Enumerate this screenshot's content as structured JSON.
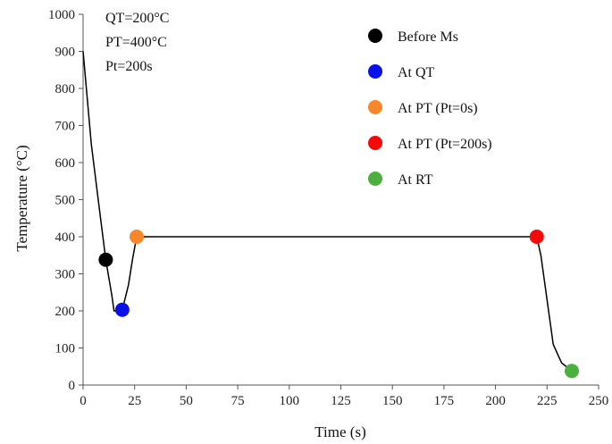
{
  "chart_data": {
    "type": "line",
    "xlabel": "Time (s)",
    "ylabel": "Temperature (°C)",
    "xlim": [
      0,
      250
    ],
    "ylim": [
      0,
      1000
    ],
    "xticks": [
      0,
      25,
      50,
      75,
      100,
      125,
      150,
      175,
      200,
      225,
      250
    ],
    "yticks": [
      0,
      100,
      200,
      300,
      400,
      500,
      600,
      700,
      800,
      900,
      1000
    ],
    "grid": false,
    "legend_position": "top-right",
    "annotations": [
      "QT=200°C",
      "PT=400°C",
      "Pt=200s"
    ],
    "series": [
      {
        "x": [
          0,
          4,
          8,
          11,
          14,
          15,
          19,
          22,
          24,
          25,
          26,
          220,
          222,
          225,
          228,
          232,
          237
        ],
        "y": [
          900,
          650,
          470,
          338,
          240,
          200,
          203,
          270,
          340,
          370,
          400,
          400,
          350,
          230,
          110,
          60,
          38
        ],
        "color": "#000000"
      }
    ],
    "markers": [
      {
        "label": "Before Ms",
        "x": 11,
        "y": 338,
        "color": "#000000"
      },
      {
        "label": "At QT",
        "x": 19,
        "y": 203,
        "color": "#0a10e8"
      },
      {
        "label": "At PT (Pt=0s)",
        "x": 26,
        "y": 400,
        "color": "#f7872b"
      },
      {
        "label": "At PT (Pt=200s)",
        "x": 220,
        "y": 400,
        "color": "#f50a0a"
      },
      {
        "label": "At RT",
        "x": 237,
        "y": 38,
        "color": "#4caf3f"
      }
    ]
  }
}
